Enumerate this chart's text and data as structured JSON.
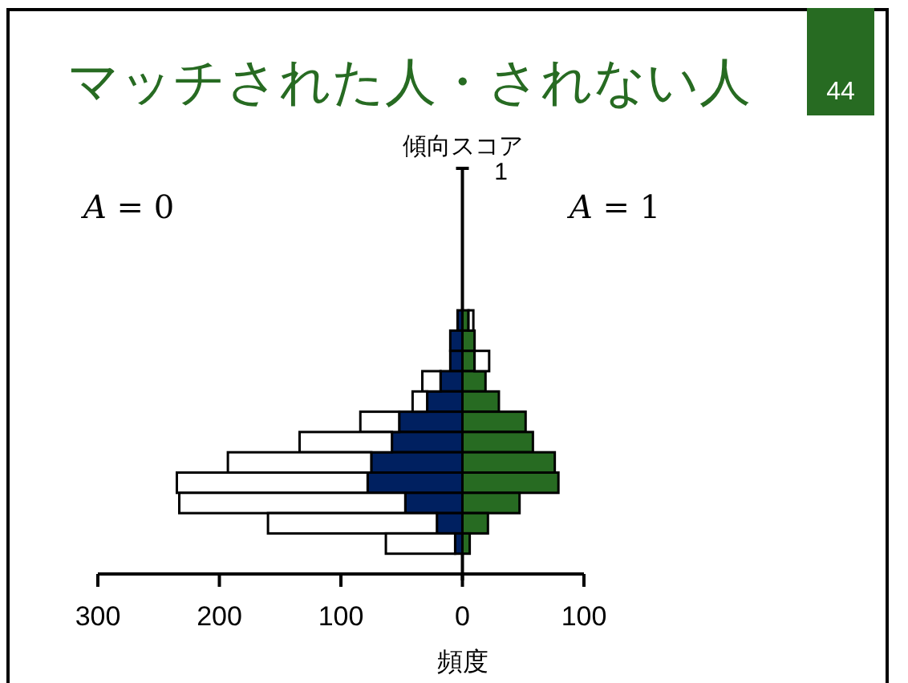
{
  "chart_data": {
    "type": "bar",
    "orientation": "horizontal",
    "stacked": true,
    "title": "マッチされた人・されない人",
    "xlabel": "頻度",
    "ylabel": "傾向スコア",
    "categories": [
      null,
      null,
      null,
      null,
      null,
      null,
      null,
      null,
      null,
      null,
      null,
      null,
      null,
      null,
      null,
      null,
      null,
      null,
      null,
      null
    ],
    "series": [
      {
        "color": "#002060",
        "values": [
          null,
          null,
          null,
          null,
          null,
          null,
          null,
          -4,
          -10,
          -10,
          -18,
          -29,
          -52,
          -58,
          -75,
          -78,
          -47,
          -21,
          -6,
          null
        ]
      },
      {
        "color": "#ffffff",
        "values": [
          null,
          null,
          null,
          null,
          null,
          null,
          null,
          null,
          null,
          null,
          -15,
          -12,
          -32,
          -76,
          -118,
          -157,
          -186,
          -139,
          -57,
          null
        ]
      },
      {
        "color": "#276b22",
        "values": [
          null,
          null,
          null,
          null,
          null,
          null,
          null,
          5,
          10,
          10,
          19,
          30,
          52,
          58,
          76,
          79,
          47,
          21,
          6,
          null
        ]
      },
      {
        "color": "#ffffff",
        "values": [
          null,
          null,
          null,
          null,
          null,
          null,
          null,
          4,
          null,
          12,
          null,
          null,
          null,
          null,
          null,
          null,
          null,
          null,
          null,
          null
        ]
      }
    ],
    "xlim": [
      -300,
      100
    ],
    "xticks": [
      {
        "value": -300,
        "label": "300"
      },
      {
        "value": -200,
        "label": "200"
      },
      {
        "value": -100,
        "label": "100"
      },
      0,
      100
    ],
    "tick_labels": "x",
    "annotations": [
      "1",
      "*A* = 0",
      "*A* = 1",
      "44"
    ]
  }
}
